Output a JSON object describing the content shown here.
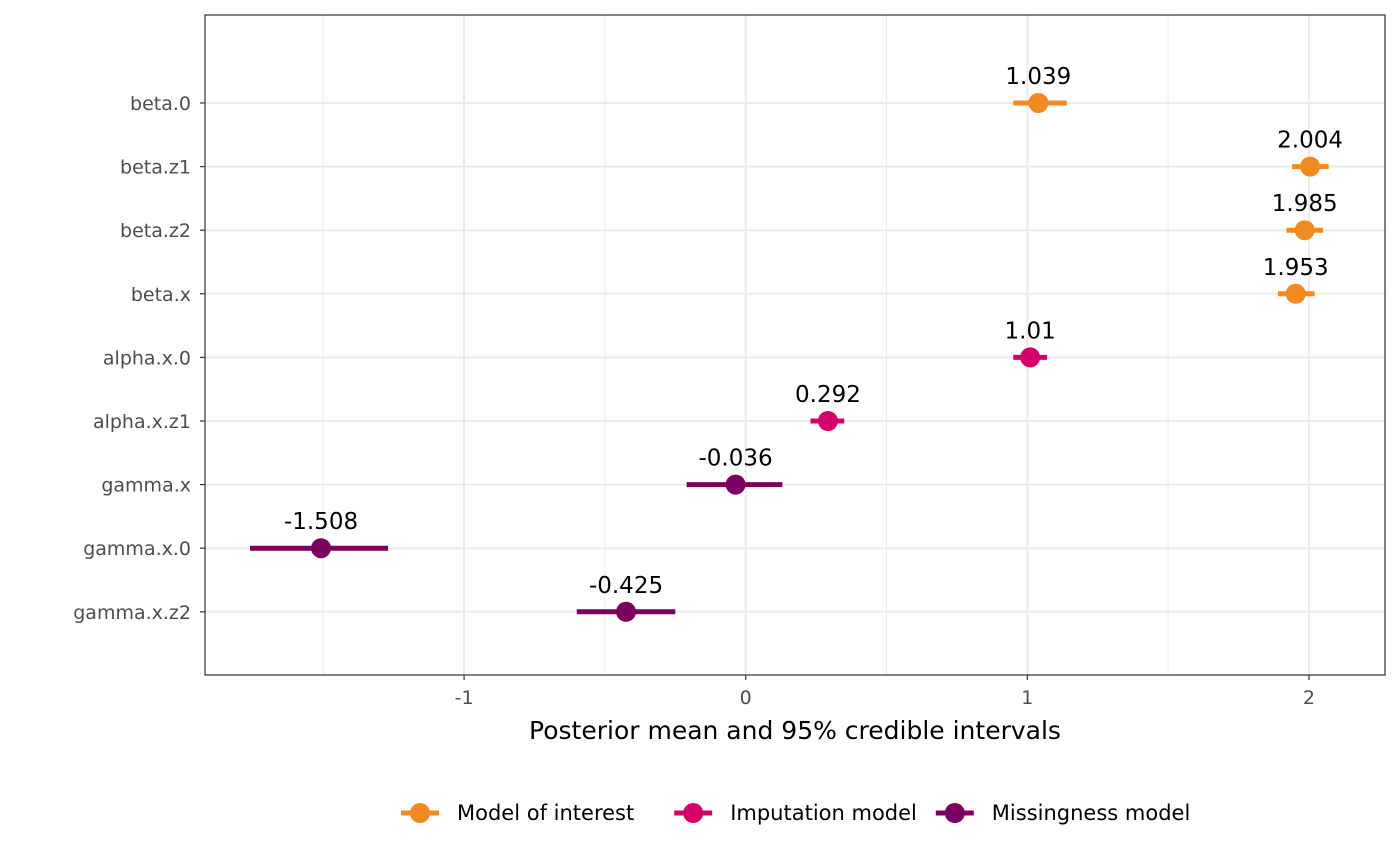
{
  "chart_data": {
    "type": "scatter",
    "subtype": "forest-plot",
    "title": "",
    "xlabel": "Posterior mean and 95% credible intervals",
    "ylabel": "",
    "xlim": [
      -1.92,
      2.27
    ],
    "x_ticks": [
      -1,
      0,
      1,
      2
    ],
    "x_tick_labels": [
      "-1",
      "0",
      "1",
      "2"
    ],
    "grid": true,
    "legend_position": "bottom",
    "series": [
      {
        "name": "Model of interest",
        "color": "#F28A24"
      },
      {
        "name": "Imputation model",
        "color": "#D6006B"
      },
      {
        "name": "Missingness model",
        "color": "#7B005F"
      }
    ],
    "categories": [
      "beta.0",
      "beta.z1",
      "beta.z2",
      "beta.x",
      "alpha.x.0",
      "alpha.x.z1",
      "gamma.x",
      "gamma.x.0",
      "gamma.x.z2"
    ],
    "points": [
      {
        "label": "beta.0",
        "series": "Model of interest",
        "mean": 1.039,
        "lower": 0.95,
        "upper": 1.14,
        "text": "1.039"
      },
      {
        "label": "beta.z1",
        "series": "Model of interest",
        "mean": 2.004,
        "lower": 1.94,
        "upper": 2.07,
        "text": "2.004"
      },
      {
        "label": "beta.z2",
        "series": "Model of interest",
        "mean": 1.985,
        "lower": 1.92,
        "upper": 2.05,
        "text": "1.985"
      },
      {
        "label": "beta.x",
        "series": "Model of interest",
        "mean": 1.953,
        "lower": 1.89,
        "upper": 2.02,
        "text": "1.953"
      },
      {
        "label": "alpha.x.0",
        "series": "Imputation model",
        "mean": 1.01,
        "lower": 0.95,
        "upper": 1.07,
        "text": "1.01"
      },
      {
        "label": "alpha.x.z1",
        "series": "Imputation model",
        "mean": 0.292,
        "lower": 0.23,
        "upper": 0.35,
        "text": "0.292"
      },
      {
        "label": "gamma.x",
        "series": "Missingness model",
        "mean": -0.036,
        "lower": -0.21,
        "upper": 0.13,
        "text": "-0.036"
      },
      {
        "label": "gamma.x.0",
        "series": "Missingness model",
        "mean": -1.508,
        "lower": -1.76,
        "upper": -1.27,
        "text": "-1.508"
      },
      {
        "label": "gamma.x.z2",
        "series": "Missingness model",
        "mean": -0.425,
        "lower": -0.6,
        "upper": -0.25,
        "text": "-0.425"
      }
    ]
  }
}
